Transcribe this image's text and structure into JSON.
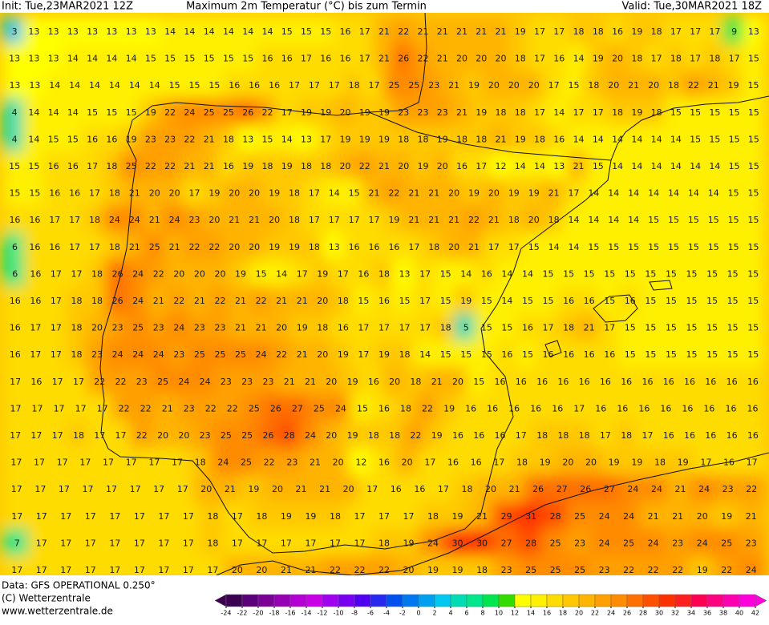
{
  "header": {
    "init": "Init: Tue,23MAR2021 12Z",
    "title": "Maximum 2m Temperatur (°C) bis zum Termin",
    "valid": "Valid: Tue,30MAR2021 18Z"
  },
  "map": {
    "rows": [
      [
        3,
        13,
        13,
        13,
        13,
        13,
        13,
        13,
        14,
        14,
        14,
        14,
        14,
        14,
        15,
        15,
        15,
        16,
        17,
        21,
        22,
        21,
        21,
        21,
        21,
        21,
        19,
        17,
        17,
        18,
        18,
        16,
        19,
        18,
        17,
        17,
        17,
        9,
        13
      ],
      [
        13,
        13,
        13,
        14,
        14,
        14,
        14,
        15,
        15,
        15,
        15,
        15,
        15,
        16,
        16,
        17,
        16,
        16,
        17,
        21,
        26,
        22,
        21,
        20,
        20,
        20,
        18,
        17,
        16,
        14,
        19,
        20,
        18,
        17,
        18,
        17,
        18,
        17,
        15
      ],
      [
        13,
        13,
        14,
        14,
        14,
        14,
        14,
        14,
        15,
        15,
        15,
        16,
        16,
        16,
        17,
        17,
        17,
        18,
        17,
        25,
        25,
        23,
        21,
        19,
        20,
        20,
        20,
        17,
        15,
        18,
        20,
        21,
        20,
        18,
        22,
        21,
        19,
        15
      ],
      [
        4,
        14,
        14,
        14,
        15,
        15,
        15,
        19,
        22,
        24,
        25,
        25,
        26,
        22,
        17,
        19,
        19,
        20,
        19,
        19,
        23,
        23,
        23,
        21,
        19,
        18,
        18,
        17,
        14,
        17,
        17,
        18,
        19,
        18,
        15,
        15,
        15,
        15,
        15
      ],
      [
        4,
        14,
        15,
        15,
        16,
        16,
        19,
        23,
        23,
        22,
        21,
        18,
        13,
        15,
        14,
        13,
        17,
        19,
        19,
        19,
        18,
        18,
        19,
        18,
        18,
        21,
        19,
        18,
        16,
        14,
        14,
        14,
        14,
        14,
        14,
        15,
        15,
        15,
        15
      ],
      [
        15,
        15,
        16,
        16,
        17,
        18,
        25,
        22,
        22,
        21,
        21,
        16,
        19,
        18,
        19,
        18,
        18,
        20,
        22,
        21,
        20,
        19,
        20,
        16,
        17,
        12,
        14,
        14,
        13,
        21,
        15,
        14,
        14,
        14,
        14,
        14,
        14,
        15,
        15
      ],
      [
        15,
        15,
        16,
        16,
        17,
        18,
        21,
        20,
        20,
        17,
        19,
        20,
        20,
        19,
        18,
        17,
        14,
        15,
        21,
        22,
        21,
        21,
        20,
        19,
        20,
        19,
        19,
        21,
        17,
        14,
        14,
        14,
        14,
        14,
        14,
        14,
        15,
        15
      ],
      [
        16,
        16,
        17,
        17,
        18,
        24,
        24,
        21,
        24,
        23,
        20,
        21,
        21,
        20,
        18,
        17,
        17,
        17,
        17,
        19,
        21,
        21,
        21,
        22,
        21,
        18,
        20,
        18,
        14,
        14,
        14,
        14,
        15,
        15,
        15,
        15,
        15,
        15
      ],
      [
        6,
        16,
        16,
        17,
        17,
        18,
        21,
        25,
        21,
        22,
        22,
        20,
        20,
        19,
        19,
        18,
        13,
        16,
        16,
        16,
        17,
        18,
        20,
        21,
        17,
        17,
        15,
        14,
        14,
        15,
        15,
        15,
        15,
        15,
        15,
        15,
        15,
        15
      ],
      [
        6,
        16,
        17,
        17,
        18,
        26,
        24,
        22,
        20,
        20,
        20,
        19,
        15,
        14,
        17,
        19,
        17,
        16,
        18,
        13,
        17,
        15,
        14,
        16,
        14,
        14,
        15,
        15,
        15,
        15,
        15,
        15,
        15,
        15,
        15,
        15,
        15
      ],
      [
        16,
        16,
        17,
        18,
        18,
        26,
        24,
        21,
        22,
        21,
        22,
        21,
        22,
        21,
        21,
        20,
        18,
        15,
        16,
        15,
        17,
        15,
        19,
        15,
        14,
        15,
        15,
        16,
        16,
        15,
        16,
        15,
        15,
        15,
        15,
        15,
        15
      ],
      [
        16,
        17,
        17,
        18,
        20,
        23,
        25,
        23,
        24,
        23,
        23,
        21,
        21,
        20,
        19,
        18,
        16,
        17,
        17,
        17,
        17,
        18,
        5,
        15,
        15,
        16,
        17,
        18,
        21,
        17,
        15,
        15,
        15,
        15,
        15,
        15,
        15
      ],
      [
        16,
        17,
        17,
        18,
        23,
        24,
        24,
        24,
        23,
        25,
        25,
        25,
        24,
        22,
        21,
        20,
        19,
        17,
        19,
        18,
        14,
        15,
        15,
        15,
        16,
        15,
        16,
        16,
        16,
        16,
        15,
        15,
        15,
        15,
        15,
        15,
        15
      ],
      [
        17,
        16,
        17,
        17,
        22,
        22,
        23,
        25,
        24,
        24,
        23,
        23,
        23,
        21,
        21,
        20,
        19,
        16,
        20,
        18,
        21,
        20,
        15,
        16,
        16,
        16,
        16,
        16,
        16,
        16,
        16,
        16,
        16,
        16,
        16,
        16
      ],
      [
        17,
        17,
        17,
        17,
        17,
        22,
        22,
        21,
        23,
        22,
        22,
        25,
        26,
        27,
        25,
        24,
        15,
        16,
        18,
        22,
        19,
        16,
        16,
        16,
        16,
        16,
        17,
        16,
        16,
        16,
        16,
        16,
        16,
        16,
        16
      ],
      [
        17,
        17,
        17,
        18,
        17,
        17,
        22,
        20,
        20,
        23,
        25,
        25,
        26,
        28,
        24,
        20,
        19,
        18,
        18,
        22,
        19,
        16,
        16,
        16,
        17,
        18,
        18,
        18,
        17,
        18,
        17,
        16,
        16,
        16,
        16,
        16
      ],
      [
        17,
        17,
        17,
        17,
        17,
        17,
        17,
        17,
        18,
        24,
        25,
        22,
        23,
        21,
        20,
        12,
        16,
        20,
        17,
        16,
        16,
        17,
        18,
        19,
        20,
        20,
        19,
        19,
        18,
        19,
        17,
        16,
        17
      ],
      [
        17,
        17,
        17,
        17,
        17,
        17,
        17,
        17,
        20,
        21,
        19,
        20,
        21,
        21,
        20,
        17,
        16,
        16,
        17,
        18,
        20,
        21,
        26,
        27,
        26,
        27,
        24,
        24,
        21,
        24,
        23,
        22
      ],
      [
        17,
        17,
        17,
        17,
        17,
        17,
        17,
        17,
        18,
        17,
        18,
        19,
        19,
        18,
        17,
        17,
        17,
        18,
        19,
        21,
        29,
        31,
        28,
        25,
        24,
        24,
        21,
        21,
        20,
        19,
        21
      ],
      [
        7,
        17,
        17,
        17,
        17,
        17,
        17,
        17,
        18,
        17,
        17,
        17,
        17,
        17,
        17,
        18,
        19,
        24,
        30,
        30,
        27,
        28,
        25,
        23,
        24,
        25,
        24,
        23,
        24,
        25,
        23
      ],
      [
        17,
        17,
        17,
        17,
        17,
        17,
        17,
        17,
        17,
        20,
        20,
        21,
        21,
        22,
        22,
        22,
        20,
        19,
        19,
        18,
        23,
        25,
        25,
        25,
        23,
        22,
        22,
        22,
        19,
        22,
        24
      ]
    ],
    "scale": {
      "ticks": [
        -24,
        -22,
        -20,
        -18,
        -16,
        -14,
        -12,
        -10,
        -8,
        -6,
        -4,
        -2,
        0,
        2,
        4,
        6,
        8,
        10,
        12,
        14,
        16,
        18,
        20,
        22,
        24,
        26,
        28,
        30,
        32,
        34,
        36,
        38,
        40,
        42
      ],
      "colors": [
        "#3c0050",
        "#5a0078",
        "#7a0096",
        "#9600b4",
        "#b400d2",
        "#c800e6",
        "#a000f0",
        "#7800f0",
        "#5000f0",
        "#2828f0",
        "#0050f0",
        "#0078f0",
        "#00a0f0",
        "#00c8f0",
        "#00dcb4",
        "#00e68c",
        "#00e650",
        "#32dc00",
        "#ffff00",
        "#fff000",
        "#ffdc00",
        "#ffc800",
        "#ffb400",
        "#ffa000",
        "#ff8c00",
        "#ff7000",
        "#ff5000",
        "#ff3000",
        "#ff1e1e",
        "#ff0050",
        "#ff0080",
        "#ff00b0",
        "#ff00dc"
      ]
    }
  },
  "footer": {
    "data": "Data: GFS OPERATIONAL 0.250°",
    "copyright": "(C) Wetterzentrale",
    "url": "www.wetterzentrale.de"
  }
}
